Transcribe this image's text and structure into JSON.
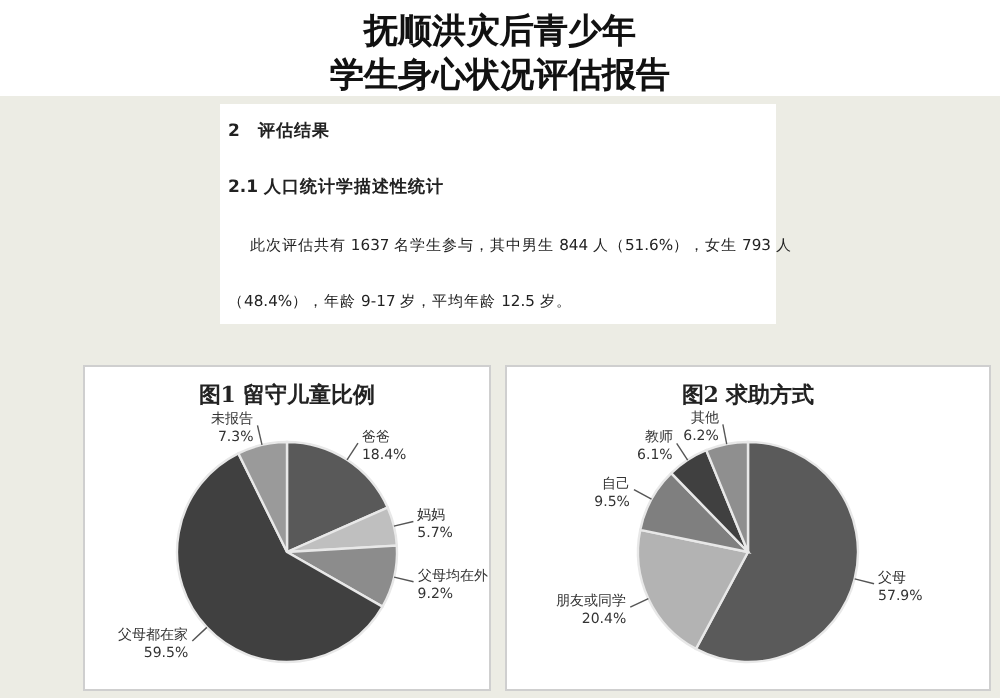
{
  "chart_data": [
    {
      "type": "other",
      "title": "抚顺洪灾后青少年",
      "subtitle": "学生身心状况评估报告",
      "annotations": [
        "2　评估结果",
        "2.1 人口统计学描述性统计",
        "此次评估共有 1637 名学生参与，其中男生 844 人（51.6%），女生 793 人",
        "（48.4%），年龄 9-17 岁，平均年龄 12.5 岁。"
      ]
    },
    {
      "type": "pie",
      "title": "图1 留守儿童比例",
      "categories": [
        "爸爸",
        "妈妈",
        "父母均在外",
        "父母都在家",
        "未报告"
      ],
      "values": [
        18.4,
        5.7,
        9.2,
        59.5,
        7.3
      ],
      "colors": [
        "#595959",
        "#bfbfbf",
        "#8c8c8c",
        "#404040",
        "#9a9a9a"
      ],
      "value_labels": [
        "18.4%",
        "5.7%",
        "9.2%",
        "59.5%",
        "7.3%"
      ]
    },
    {
      "type": "pie",
      "title": "图2 求助方式",
      "categories": [
        "父母",
        "朋友或同学",
        "自己",
        "教师",
        "其他"
      ],
      "values": [
        57.9,
        20.4,
        9.5,
        6.1,
        6.2
      ],
      "colors": [
        "#5a5a5a",
        "#b3b3b3",
        "#7f7f7f",
        "#404040",
        "#8f8f8f"
      ],
      "value_labels": [
        "57.9%",
        "20.4%",
        "9.5%",
        "6.1%",
        "6.2%"
      ]
    }
  ]
}
